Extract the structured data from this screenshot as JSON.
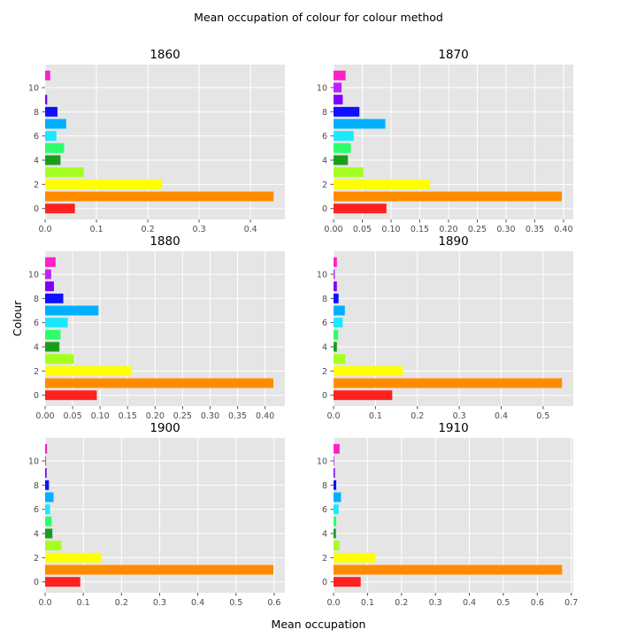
{
  "figure": {
    "title": "Mean occupation of colour for colour method",
    "xlabel": "Mean occupation",
    "ylabel": "Colour"
  },
  "chart_data": [
    {
      "type": "bar",
      "orientation": "horizontal",
      "title": "1860",
      "categories": [
        0,
        1,
        2,
        3,
        4,
        5,
        6,
        7,
        8,
        9,
        10,
        11
      ],
      "values": [
        0.058,
        0.445,
        0.228,
        0.075,
        0.03,
        0.037,
        0.022,
        0.041,
        0.024,
        0.004,
        0.0,
        0.01
      ],
      "colors": [
        "#ff2020",
        "#ff8c00",
        "#ffff00",
        "#a4ff20",
        "#1a9e1a",
        "#2aff6a",
        "#1ae8ff",
        "#00b0ff",
        "#1010ff",
        "#8000ff",
        "#c020ff",
        "#ff20c8"
      ],
      "xlim": [
        0,
        0.467
      ],
      "xticks": [
        0.0,
        0.1,
        0.2,
        0.3,
        0.4
      ],
      "xtick_labels": [
        "0.0",
        "0.1",
        "0.2",
        "0.3",
        "0.4"
      ],
      "ylim": [
        -0.9,
        11.9
      ],
      "yticks": [
        0,
        2,
        4,
        6,
        8,
        10
      ],
      "grid": true
    },
    {
      "type": "bar",
      "orientation": "horizontal",
      "title": "1870",
      "categories": [
        0,
        1,
        2,
        3,
        4,
        5,
        6,
        7,
        8,
        9,
        10,
        11
      ],
      "values": [
        0.092,
        0.397,
        0.168,
        0.052,
        0.025,
        0.03,
        0.035,
        0.09,
        0.045,
        0.016,
        0.014,
        0.021
      ],
      "colors": [
        "#ff2020",
        "#ff8c00",
        "#ffff00",
        "#a4ff20",
        "#1a9e1a",
        "#2aff6a",
        "#1ae8ff",
        "#00b0ff",
        "#1010ff",
        "#8000ff",
        "#c020ff",
        "#ff20c8"
      ],
      "xlim": [
        0,
        0.417
      ],
      "xticks": [
        0.0,
        0.05,
        0.1,
        0.15,
        0.2,
        0.25,
        0.3,
        0.35,
        0.4
      ],
      "xtick_labels": [
        "0.00",
        "0.05",
        "0.10",
        "0.15",
        "0.20",
        "0.25",
        "0.30",
        "0.35",
        "0.40"
      ],
      "ylim": [
        -0.9,
        11.9
      ],
      "yticks": [
        0,
        2,
        4,
        6,
        8,
        10
      ],
      "grid": true
    },
    {
      "type": "bar",
      "orientation": "horizontal",
      "title": "1880",
      "categories": [
        0,
        1,
        2,
        3,
        4,
        5,
        6,
        7,
        8,
        9,
        10,
        11
      ],
      "values": [
        0.094,
        0.415,
        0.158,
        0.052,
        0.026,
        0.028,
        0.041,
        0.097,
        0.033,
        0.016,
        0.011,
        0.019
      ],
      "colors": [
        "#ff2020",
        "#ff8c00",
        "#ffff00",
        "#a4ff20",
        "#1a9e1a",
        "#2aff6a",
        "#1ae8ff",
        "#00b0ff",
        "#1010ff",
        "#8000ff",
        "#c020ff",
        "#ff20c8"
      ],
      "xlim": [
        0,
        0.436
      ],
      "xticks": [
        0.0,
        0.05,
        0.1,
        0.15,
        0.2,
        0.25,
        0.3,
        0.35,
        0.4
      ],
      "xtick_labels": [
        "0.00",
        "0.05",
        "0.10",
        "0.15",
        "0.20",
        "0.25",
        "0.30",
        "0.35",
        "0.40"
      ],
      "ylim": [
        -0.9,
        11.9
      ],
      "yticks": [
        0,
        2,
        4,
        6,
        8,
        10
      ],
      "grid": true
    },
    {
      "type": "bar",
      "orientation": "horizontal",
      "title": "1890",
      "categories": [
        0,
        1,
        2,
        3,
        4,
        5,
        6,
        7,
        8,
        9,
        10,
        11
      ],
      "values": [
        0.14,
        0.545,
        0.165,
        0.028,
        0.008,
        0.011,
        0.022,
        0.027,
        0.012,
        0.008,
        0.003,
        0.008
      ],
      "colors": [
        "#ff2020",
        "#ff8c00",
        "#ffff00",
        "#a4ff20",
        "#1a9e1a",
        "#2aff6a",
        "#1ae8ff",
        "#00b0ff",
        "#1010ff",
        "#8000ff",
        "#c020ff",
        "#ff20c8"
      ],
      "xlim": [
        0,
        0.572
      ],
      "xticks": [
        0.0,
        0.1,
        0.2,
        0.3,
        0.4,
        0.5
      ],
      "xtick_labels": [
        "0.0",
        "0.1",
        "0.2",
        "0.3",
        "0.4",
        "0.5"
      ],
      "ylim": [
        -0.9,
        11.9
      ],
      "yticks": [
        0,
        2,
        4,
        6,
        8,
        10
      ],
      "grid": true
    },
    {
      "type": "bar",
      "orientation": "horizontal",
      "title": "1900",
      "categories": [
        0,
        1,
        2,
        3,
        4,
        5,
        6,
        7,
        8,
        9,
        10,
        11
      ],
      "values": [
        0.092,
        0.598,
        0.147,
        0.043,
        0.019,
        0.017,
        0.013,
        0.022,
        0.01,
        0.004,
        0.002,
        0.005
      ],
      "colors": [
        "#ff2020",
        "#ff8c00",
        "#ffff00",
        "#a4ff20",
        "#1a9e1a",
        "#2aff6a",
        "#1ae8ff",
        "#00b0ff",
        "#1010ff",
        "#8000ff",
        "#c020ff",
        "#ff20c8"
      ],
      "xlim": [
        0,
        0.628
      ],
      "xticks": [
        0.0,
        0.1,
        0.2,
        0.3,
        0.4,
        0.5,
        0.6
      ],
      "xtick_labels": [
        "0.0",
        "0.1",
        "0.2",
        "0.3",
        "0.4",
        "0.5",
        "0.6"
      ],
      "ylim": [
        -0.9,
        11.9
      ],
      "yticks": [
        0,
        2,
        4,
        6,
        8,
        10
      ],
      "grid": true
    },
    {
      "type": "bar",
      "orientation": "horizontal",
      "title": "1910",
      "categories": [
        0,
        1,
        2,
        3,
        4,
        5,
        6,
        7,
        8,
        9,
        10,
        11
      ],
      "values": [
        0.08,
        0.673,
        0.123,
        0.018,
        0.007,
        0.008,
        0.015,
        0.022,
        0.008,
        0.004,
        0.002,
        0.018
      ],
      "colors": [
        "#ff2020",
        "#ff8c00",
        "#ffff00",
        "#a4ff20",
        "#1a9e1a",
        "#2aff6a",
        "#1ae8ff",
        "#00b0ff",
        "#1010ff",
        "#8000ff",
        "#c020ff",
        "#ff20c8"
      ],
      "xlim": [
        0,
        0.706
      ],
      "xticks": [
        0.0,
        0.1,
        0.2,
        0.3,
        0.4,
        0.5,
        0.6,
        0.7
      ],
      "xtick_labels": [
        "0.0",
        "0.1",
        "0.2",
        "0.3",
        "0.4",
        "0.5",
        "0.6",
        "0.7"
      ],
      "ylim": [
        -0.9,
        11.9
      ],
      "yticks": [
        0,
        2,
        4,
        6,
        8,
        10
      ],
      "grid": true
    }
  ]
}
